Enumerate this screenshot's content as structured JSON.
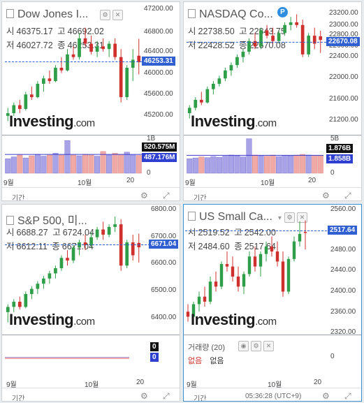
{
  "colors": {
    "up": "#2f9e48",
    "down": "#d0302d",
    "price_tag": "#2f5fd0",
    "vol_up": "#a8a2e6",
    "vol_down": "#f0a9a5"
  },
  "footer_label": "기간",
  "panels": [
    {
      "title": "Dow Jones I...",
      "ohlc": {
        "open_label": "시",
        "open": "46375.17",
        "high_label": "고",
        "high": "46692.02",
        "low_label": "저",
        "low": "46027.72",
        "close_label": "종",
        "close": "46253.31"
      },
      "price_ticks": [
        "47200.00",
        "46800.00",
        "46400.00",
        "46000.00",
        "45600.00",
        "45200.00"
      ],
      "current_price": "46253.31",
      "volume_ticks": [
        "1B",
        "0"
      ],
      "volume_tags": [
        "520.575M",
        "487.176M"
      ],
      "x_ticks": [
        "9월",
        "10월",
        "20"
      ]
    },
    {
      "title": "NASDAQ Co...",
      "badge": "P",
      "ohlc": {
        "open_label": "시",
        "open": "22738.50",
        "high_label": "고",
        "high": "22843.75",
        "low_label": "저",
        "low": "22428.52",
        "close_label": "종",
        "close": "22670.08"
      },
      "price_ticks": [
        "23200.00",
        "23000.00",
        "22800.00",
        "22600.00",
        "22400.00",
        "22000.00",
        "21600.00",
        "21200.00"
      ],
      "current_price": "22670.08",
      "volume_ticks": [
        "5B",
        "0"
      ],
      "volume_tags": [
        "1.876B",
        "1.858B"
      ],
      "x_ticks": [
        "9월",
        "10월",
        "20"
      ]
    },
    {
      "title": "S&P 500, 미...",
      "ohlc": {
        "open_label": "시",
        "open": "6688.27",
        "high_label": "고",
        "high": "6724.04",
        "low_label": "저",
        "low": "6612.11",
        "close_label": "종",
        "close": "6671.04"
      },
      "price_ticks": [
        "6800.00",
        "6700.00",
        "6600.00",
        "6500.00",
        "6400.00"
      ],
      "current_price": "6671.04",
      "volume_ticks": [
        "0",
        "0"
      ],
      "volume_tags": [
        "0",
        "0"
      ],
      "x_ticks": [
        "9월",
        "10월",
        "20"
      ]
    },
    {
      "title": "US Small Ca...",
      "ohlc": {
        "open_label": "시",
        "open": "2519.52",
        "high_label": "고",
        "high": "2542.00",
        "low_label": "저",
        "low": "2484.60",
        "close_label": "종",
        "close": "2517.64"
      },
      "price_ticks": [
        "2560.00",
        "2520.00",
        "2480.00",
        "2440.00",
        "2400.00",
        "2360.00",
        "2320.00"
      ],
      "current_price": "2517.64",
      "volume_ticks": [
        "0"
      ],
      "volume_title": "거래량 (20)",
      "volume_legend": "없음",
      "volume_value": "없음",
      "x_ticks": [
        "9월",
        "10월",
        "20"
      ],
      "footer_time": "05:36:28 (UTC+9)"
    }
  ],
  "logo": {
    "main": "Investing",
    "suffix": ".com"
  },
  "chart_data": [
    {
      "type": "candlestick",
      "name": "Dow Jones",
      "ylim": [
        45000,
        47300
      ],
      "candles": [
        [
          45250,
          45400,
          45150,
          45300
        ],
        [
          45300,
          45500,
          45250,
          45450
        ],
        [
          45450,
          45550,
          45300,
          45380
        ],
        [
          45380,
          45700,
          45350,
          45650
        ],
        [
          45650,
          45800,
          45550,
          45600
        ],
        [
          45600,
          45900,
          45580,
          45850
        ],
        [
          45850,
          46000,
          45700,
          45950
        ],
        [
          45950,
          46100,
          45850,
          45900
        ],
        [
          45900,
          46200,
          45880,
          46150
        ],
        [
          46150,
          46350,
          46050,
          46100
        ],
        [
          46100,
          46500,
          46080,
          46400
        ],
        [
          46400,
          46550,
          46300,
          46350
        ],
        [
          46350,
          46800,
          46300,
          46700
        ],
        [
          46700,
          46900,
          46550,
          46600
        ],
        [
          46600,
          46750,
          46400,
          46450
        ],
        [
          46450,
          46650,
          46350,
          46550
        ],
        [
          46550,
          46700,
          46450,
          46500
        ],
        [
          46500,
          46650,
          46350,
          46600
        ],
        [
          46600,
          46700,
          46300,
          46350
        ],
        [
          46350,
          46500,
          45500,
          45600
        ],
        [
          45600,
          46200,
          45550,
          46150
        ],
        [
          46150,
          46500,
          45900,
          46300
        ],
        [
          46375,
          46692,
          46027,
          46253
        ]
      ],
      "volume": [
        0.4,
        0.45,
        0.5,
        0.42,
        0.48,
        0.52,
        0.47,
        0.5,
        0.55,
        0.5,
        0.9,
        0.5,
        0.48,
        0.52,
        0.5,
        0.47,
        0.6,
        0.5,
        0.55,
        0.52,
        0.58,
        0.5,
        0.49
      ]
    },
    {
      "type": "candlestick",
      "name": "NASDAQ",
      "ylim": [
        21000,
        23300
      ],
      "candles": [
        [
          21300,
          21450,
          21200,
          21400
        ],
        [
          21400,
          21600,
          21350,
          21550
        ],
        [
          21550,
          21700,
          21450,
          21500
        ],
        [
          21500,
          21800,
          21480,
          21750
        ],
        [
          21750,
          21900,
          21650,
          21850
        ],
        [
          21850,
          22000,
          21800,
          21950
        ],
        [
          21950,
          22150,
          21900,
          22100
        ],
        [
          22100,
          22250,
          22000,
          22200
        ],
        [
          22200,
          22400,
          22150,
          22350
        ],
        [
          22350,
          22500,
          22250,
          22450
        ],
        [
          22450,
          22700,
          22400,
          22650
        ],
        [
          22650,
          22800,
          22500,
          22550
        ],
        [
          22550,
          22900,
          22500,
          22850
        ],
        [
          22850,
          22950,
          22700,
          22750
        ],
        [
          22750,
          22900,
          22600,
          22650
        ],
        [
          22650,
          22850,
          22600,
          22800
        ],
        [
          22800,
          23000,
          22750,
          22950
        ],
        [
          22950,
          23100,
          22850,
          23000
        ],
        [
          23000,
          23150,
          22900,
          22950
        ],
        [
          22950,
          23050,
          22350,
          22400
        ],
        [
          22400,
          22800,
          22350,
          22750
        ],
        [
          22750,
          22900,
          22500,
          22600
        ],
        [
          22738,
          22843,
          22428,
          22670
        ]
      ],
      "volume": [
        0.4,
        0.42,
        0.45,
        0.43,
        0.46,
        0.44,
        0.47,
        0.5,
        0.48,
        0.45,
        0.95,
        0.5,
        0.48,
        0.47,
        0.5,
        0.46,
        0.49,
        0.48,
        0.5,
        0.52,
        0.5,
        0.49,
        0.48
      ]
    },
    {
      "type": "candlestick",
      "name": "S&P 500",
      "ylim": [
        6360,
        6820
      ],
      "candles": [
        [
          6420,
          6450,
          6380,
          6440
        ],
        [
          6440,
          6470,
          6420,
          6460
        ],
        [
          6460,
          6480,
          6430,
          6440
        ],
        [
          6440,
          6500,
          6435,
          6490
        ],
        [
          6490,
          6520,
          6470,
          6510
        ],
        [
          6510,
          6540,
          6490,
          6530
        ],
        [
          6530,
          6560,
          6510,
          6550
        ],
        [
          6550,
          6580,
          6530,
          6570
        ],
        [
          6570,
          6600,
          6550,
          6590
        ],
        [
          6590,
          6640,
          6580,
          6630
        ],
        [
          6630,
          6660,
          6600,
          6620
        ],
        [
          6620,
          6680,
          6610,
          6670
        ],
        [
          6670,
          6700,
          6640,
          6690
        ],
        [
          6690,
          6720,
          6660,
          6680
        ],
        [
          6680,
          6730,
          6670,
          6710
        ],
        [
          6710,
          6750,
          6700,
          6740
        ],
        [
          6740,
          6770,
          6700,
          6720
        ],
        [
          6720,
          6760,
          6710,
          6750
        ],
        [
          6750,
          6790,
          6730,
          6760
        ],
        [
          6760,
          6780,
          6580,
          6600
        ],
        [
          6600,
          6700,
          6590,
          6690
        ],
        [
          6690,
          6720,
          6620,
          6640
        ],
        [
          6688,
          6724,
          6612,
          6671
        ]
      ],
      "volume": []
    },
    {
      "type": "candlestick",
      "name": "US Small Cap",
      "ylim": [
        2320,
        2565
      ],
      "candles": [
        [
          2360,
          2375,
          2340,
          2350
        ],
        [
          2350,
          2380,
          2345,
          2375
        ],
        [
          2375,
          2400,
          2360,
          2390
        ],
        [
          2390,
          2410,
          2370,
          2380
        ],
        [
          2380,
          2430,
          2375,
          2420
        ],
        [
          2420,
          2440,
          2400,
          2410
        ],
        [
          2410,
          2460,
          2405,
          2455
        ],
        [
          2455,
          2480,
          2440,
          2450
        ],
        [
          2450,
          2470,
          2420,
          2430
        ],
        [
          2430,
          2450,
          2400,
          2410
        ],
        [
          2410,
          2440,
          2395,
          2435
        ],
        [
          2435,
          2480,
          2430,
          2470
        ],
        [
          2470,
          2490,
          2440,
          2450
        ],
        [
          2450,
          2480,
          2430,
          2475
        ],
        [
          2475,
          2500,
          2460,
          2490
        ],
        [
          2490,
          2510,
          2470,
          2480
        ],
        [
          2480,
          2500,
          2450,
          2460
        ],
        [
          2460,
          2480,
          2390,
          2400
        ],
        [
          2400,
          2470,
          2395,
          2465
        ],
        [
          2465,
          2510,
          2460,
          2500
        ],
        [
          2500,
          2540,
          2490,
          2515
        ],
        [
          2519,
          2542,
          2484,
          2517
        ]
      ],
      "volume": []
    }
  ]
}
